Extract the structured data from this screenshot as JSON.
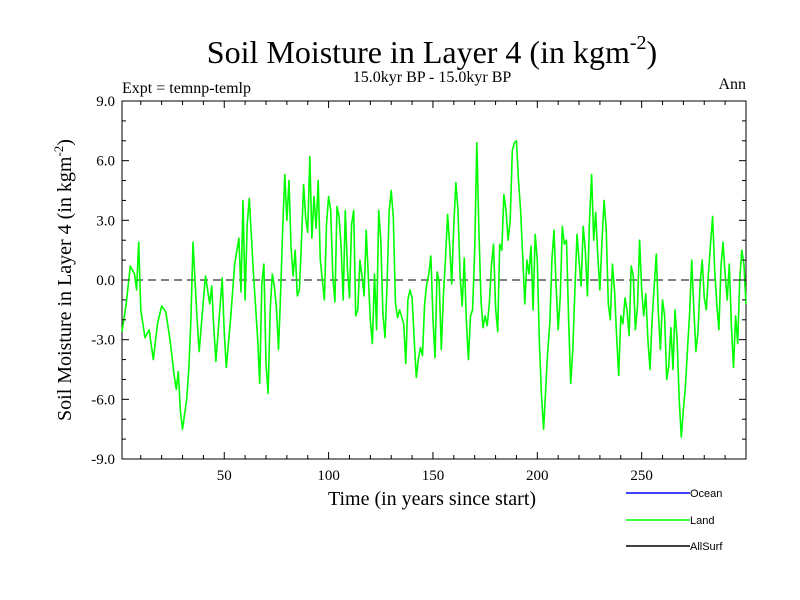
{
  "chart_data": {
    "type": "line",
    "title": "Soil Moisture in Layer 4 (in kgm",
    "title_exponent": "-2",
    "title_close": ")",
    "subtitle": "15.0kyr BP - 15.0kyr BP",
    "left_label": "Expt = temnp-temlp",
    "right_label": "Ann",
    "xlabel": "Time (in years since start)",
    "ylabel": "Soil Moisture in Layer 4 (in kgm",
    "ylabel_exponent": "-2",
    "ylabel_close": ")",
    "xlim": [
      1,
      300
    ],
    "ylim": [
      -9,
      9
    ],
    "x_ticks": [
      50,
      100,
      150,
      200,
      250
    ],
    "x_tick_labels": [
      "50",
      "100",
      "150",
      "200",
      "250"
    ],
    "y_ticks": [
      -9,
      -6,
      -3,
      0,
      3,
      6,
      9
    ],
    "y_tick_labels": [
      "-9.0",
      "-6.0",
      "-3.0",
      "0.0",
      "3.0",
      "6.0",
      "9.0"
    ],
    "zero_line": "dashed",
    "legend": [
      {
        "name": "Ocean",
        "color": "#0000ff"
      },
      {
        "name": "Land",
        "color": "#00ff00"
      },
      {
        "name": "AllSurf",
        "color": "#000000"
      }
    ],
    "series": [
      {
        "name": "Land",
        "color": "#00ff00",
        "keyframes": [
          [
            1,
            -2.6
          ],
          [
            3,
            -1.2
          ],
          [
            5,
            0.7
          ],
          [
            7,
            0.3
          ],
          [
            8,
            -0.5
          ],
          [
            9,
            1.9
          ],
          [
            10,
            -1.5
          ],
          [
            12,
            -2.9
          ],
          [
            14,
            -2.5
          ],
          [
            16,
            -4.0
          ],
          [
            18,
            -2.2
          ],
          [
            20,
            -1.3
          ],
          [
            22,
            -1.6
          ],
          [
            24,
            -3.0
          ],
          [
            26,
            -4.8
          ],
          [
            27,
            -5.5
          ],
          [
            28,
            -4.6
          ],
          [
            29,
            -6.6
          ],
          [
            30,
            -7.5
          ],
          [
            32,
            -6.0
          ],
          [
            33,
            -4.5
          ],
          [
            34,
            -2.0
          ],
          [
            35,
            1.9
          ],
          [
            36,
            0.0
          ],
          [
            37,
            -2.0
          ],
          [
            38,
            -3.6
          ],
          [
            40,
            -1.0
          ],
          [
            41,
            0.2
          ],
          [
            42,
            -0.5
          ],
          [
            43,
            -1.2
          ],
          [
            44,
            -0.3
          ],
          [
            45,
            -2.4
          ],
          [
            46,
            -4.1
          ],
          [
            48,
            -1.3
          ],
          [
            49,
            0.1
          ],
          [
            50,
            -2.7
          ],
          [
            51,
            -4.4
          ],
          [
            53,
            -2.0
          ],
          [
            55,
            0.8
          ],
          [
            57,
            2.1
          ],
          [
            58,
            -0.6
          ],
          [
            59,
            4.0
          ],
          [
            60,
            -1.0
          ],
          [
            61,
            2.8
          ],
          [
            62,
            4.1
          ],
          [
            64,
            0.3
          ],
          [
            66,
            -3.0
          ],
          [
            67,
            -5.2
          ],
          [
            68,
            -0.2
          ],
          [
            69,
            0.8
          ],
          [
            70,
            -4.2
          ],
          [
            71,
            -5.7
          ],
          [
            72,
            -1.5
          ],
          [
            73,
            0.3
          ],
          [
            74,
            -0.3
          ],
          [
            75,
            -1.4
          ],
          [
            76,
            -3.5
          ],
          [
            77,
            -0.7
          ],
          [
            78,
            2.6
          ],
          [
            79,
            5.3
          ],
          [
            80,
            3.0
          ],
          [
            81,
            5.0
          ],
          [
            82,
            1.7
          ],
          [
            83,
            0.2
          ],
          [
            84,
            1.5
          ],
          [
            85,
            -0.8
          ],
          [
            86,
            -0.5
          ],
          [
            87,
            2.0
          ],
          [
            88,
            4.8
          ],
          [
            89,
            3.1
          ],
          [
            90,
            2.4
          ],
          [
            91,
            6.2
          ],
          [
            92,
            2.1
          ],
          [
            93,
            4.2
          ],
          [
            94,
            2.6
          ],
          [
            95,
            5.0
          ],
          [
            96,
            1.0
          ],
          [
            98,
            -1.0
          ],
          [
            99,
            2.8
          ],
          [
            100,
            4.2
          ],
          [
            101,
            3.5
          ],
          [
            102,
            0.2
          ],
          [
            103,
            -1.1
          ],
          [
            104,
            3.7
          ],
          [
            105,
            3.2
          ],
          [
            106,
            1.7
          ],
          [
            107,
            -1.0
          ],
          [
            108,
            3.5
          ],
          [
            109,
            0.6
          ],
          [
            110,
            -0.9
          ],
          [
            111,
            2.8
          ],
          [
            112,
            3.5
          ],
          [
            113,
            -1.8
          ],
          [
            114,
            -1.5
          ],
          [
            115,
            1.0
          ],
          [
            116,
            0.2
          ],
          [
            117,
            -0.8
          ],
          [
            118,
            2.5
          ],
          [
            119,
            0.2
          ],
          [
            120,
            -2.0
          ],
          [
            121,
            -3.2
          ],
          [
            122,
            0.3
          ],
          [
            123,
            -2.5
          ],
          [
            124,
            3.5
          ],
          [
            125,
            2.0
          ],
          [
            126,
            -1.7
          ],
          [
            127,
            -2.9
          ],
          [
            128,
            -0.3
          ],
          [
            129,
            3.4
          ],
          [
            130,
            4.5
          ],
          [
            131,
            3.2
          ],
          [
            132,
            -1.1
          ],
          [
            133,
            -1.9
          ],
          [
            134,
            -1.5
          ],
          [
            136,
            -2.2
          ],
          [
            137,
            -4.2
          ],
          [
            138,
            -1.0
          ],
          [
            139,
            -0.5
          ],
          [
            140,
            -0.9
          ],
          [
            141,
            -3.0
          ],
          [
            142,
            -4.9
          ],
          [
            143,
            -4.0
          ],
          [
            144,
            -3.4
          ],
          [
            145,
            -3.8
          ],
          [
            146,
            -1.2
          ],
          [
            147,
            -0.2
          ],
          [
            148,
            0.3
          ],
          [
            149,
            1.2
          ],
          [
            150,
            -2.0
          ],
          [
            151,
            -3.9
          ],
          [
            152,
            0.4
          ],
          [
            153,
            -0.1
          ],
          [
            154,
            -3.5
          ],
          [
            155,
            -0.8
          ],
          [
            156,
            1.1
          ],
          [
            157,
            3.3
          ],
          [
            158,
            1.7
          ],
          [
            159,
            -0.2
          ],
          [
            160,
            2.8
          ],
          [
            161,
            4.9
          ],
          [
            162,
            3.5
          ],
          [
            163,
            0.2
          ],
          [
            164,
            -1.3
          ],
          [
            165,
            1.1
          ],
          [
            166,
            -2.0
          ],
          [
            167,
            -4.0
          ],
          [
            168,
            -1.8
          ],
          [
            169,
            -1.5
          ],
          [
            170,
            1.5
          ],
          [
            171,
            6.9
          ],
          [
            172,
            2.5
          ],
          [
            173,
            -1.0
          ],
          [
            174,
            -2.4
          ],
          [
            175,
            -1.8
          ],
          [
            176,
            -2.3
          ],
          [
            177,
            -1.2
          ],
          [
            178,
            0.7
          ],
          [
            179,
            1.8
          ],
          [
            180,
            -1.4
          ],
          [
            181,
            -2.6
          ],
          [
            182,
            1.8
          ],
          [
            183,
            1.5
          ],
          [
            184,
            4.3
          ],
          [
            185,
            3.5
          ],
          [
            186,
            2.0
          ],
          [
            187,
            3.0
          ],
          [
            188,
            6.5
          ],
          [
            189,
            6.9
          ],
          [
            190,
            7.0
          ],
          [
            191,
            5.0
          ],
          [
            192,
            3.5
          ],
          [
            193,
            1.2
          ],
          [
            194,
            -1.2
          ],
          [
            195,
            1.0
          ],
          [
            196,
            0.3
          ],
          [
            197,
            1.7
          ],
          [
            198,
            -1.5
          ],
          [
            199,
            2.3
          ],
          [
            200,
            1.0
          ],
          [
            201,
            -3.2
          ],
          [
            202,
            -5.8
          ],
          [
            203,
            -7.5
          ],
          [
            204,
            -5.5
          ],
          [
            205,
            -3.6
          ],
          [
            206,
            -2.2
          ],
          [
            207,
            1.0
          ],
          [
            208,
            2.5
          ],
          [
            209,
            -0.3
          ],
          [
            210,
            -2.5
          ],
          [
            211,
            -0.8
          ],
          [
            212,
            2.7
          ],
          [
            213,
            1.8
          ],
          [
            214,
            2.0
          ],
          [
            215,
            -2.0
          ],
          [
            216,
            -5.2
          ],
          [
            217,
            -3.5
          ],
          [
            218,
            -0.5
          ],
          [
            219,
            2.3
          ],
          [
            220,
            1.0
          ],
          [
            221,
            -0.3
          ],
          [
            222,
            2.7
          ],
          [
            223,
            1.5
          ],
          [
            224,
            -0.8
          ],
          [
            225,
            3.0
          ],
          [
            226,
            5.3
          ],
          [
            227,
            2.0
          ],
          [
            228,
            3.4
          ],
          [
            229,
            1.2
          ],
          [
            230,
            -0.5
          ],
          [
            231,
            2.0
          ],
          [
            232,
            4.0
          ],
          [
            233,
            2.6
          ],
          [
            234,
            -1.2
          ],
          [
            235,
            -2.0
          ],
          [
            236,
            0.8
          ],
          [
            237,
            -0.5
          ],
          [
            238,
            -2.8
          ],
          [
            239,
            -4.8
          ],
          [
            240,
            -1.8
          ],
          [
            241,
            -2.2
          ],
          [
            242,
            -0.9
          ],
          [
            243,
            -1.5
          ],
          [
            244,
            -2.8
          ],
          [
            245,
            0.7
          ],
          [
            246,
            0.2
          ],
          [
            247,
            -2.5
          ],
          [
            248,
            -1.3
          ],
          [
            249,
            2.0
          ],
          [
            250,
            -0.5
          ],
          [
            251,
            -1.8
          ],
          [
            252,
            -0.7
          ],
          [
            253,
            -3.0
          ],
          [
            254,
            -4.5
          ],
          [
            255,
            -2.0
          ],
          [
            256,
            -0.3
          ],
          [
            257,
            1.3
          ],
          [
            258,
            -1.6
          ],
          [
            259,
            -3.5
          ],
          [
            260,
            -1.0
          ],
          [
            261,
            -1.8
          ],
          [
            262,
            -5.0
          ],
          [
            263,
            -4.3
          ],
          [
            264,
            -2.4
          ],
          [
            265,
            -4.5
          ],
          [
            266,
            -1.5
          ],
          [
            267,
            -3.0
          ],
          [
            268,
            -6.0
          ],
          [
            269,
            -7.9
          ],
          [
            270,
            -6.5
          ],
          [
            271,
            -5.3
          ],
          [
            272,
            -3.4
          ],
          [
            273,
            -1.6
          ],
          [
            274,
            1.0
          ],
          [
            275,
            -1.4
          ],
          [
            276,
            -3.6
          ],
          [
            277,
            -2.6
          ],
          [
            278,
            -0.2
          ],
          [
            279,
            1.0
          ],
          [
            280,
            -0.9
          ],
          [
            281,
            -1.5
          ],
          [
            282,
            0.3
          ],
          [
            283,
            1.8
          ],
          [
            284,
            3.2
          ],
          [
            285,
            0.5
          ],
          [
            286,
            -1.2
          ],
          [
            287,
            -2.5
          ],
          [
            288,
            0.7
          ],
          [
            289,
            1.9
          ],
          [
            290,
            0.3
          ],
          [
            291,
            -1.0
          ],
          [
            292,
            0.8
          ],
          [
            293,
            -2.3
          ],
          [
            294,
            -4.4
          ],
          [
            295,
            -1.8
          ],
          [
            296,
            -3.2
          ],
          [
            297,
            0.0
          ],
          [
            298,
            1.5
          ],
          [
            299,
            0.8
          ],
          [
            300,
            -1.2
          ]
        ]
      }
    ]
  }
}
